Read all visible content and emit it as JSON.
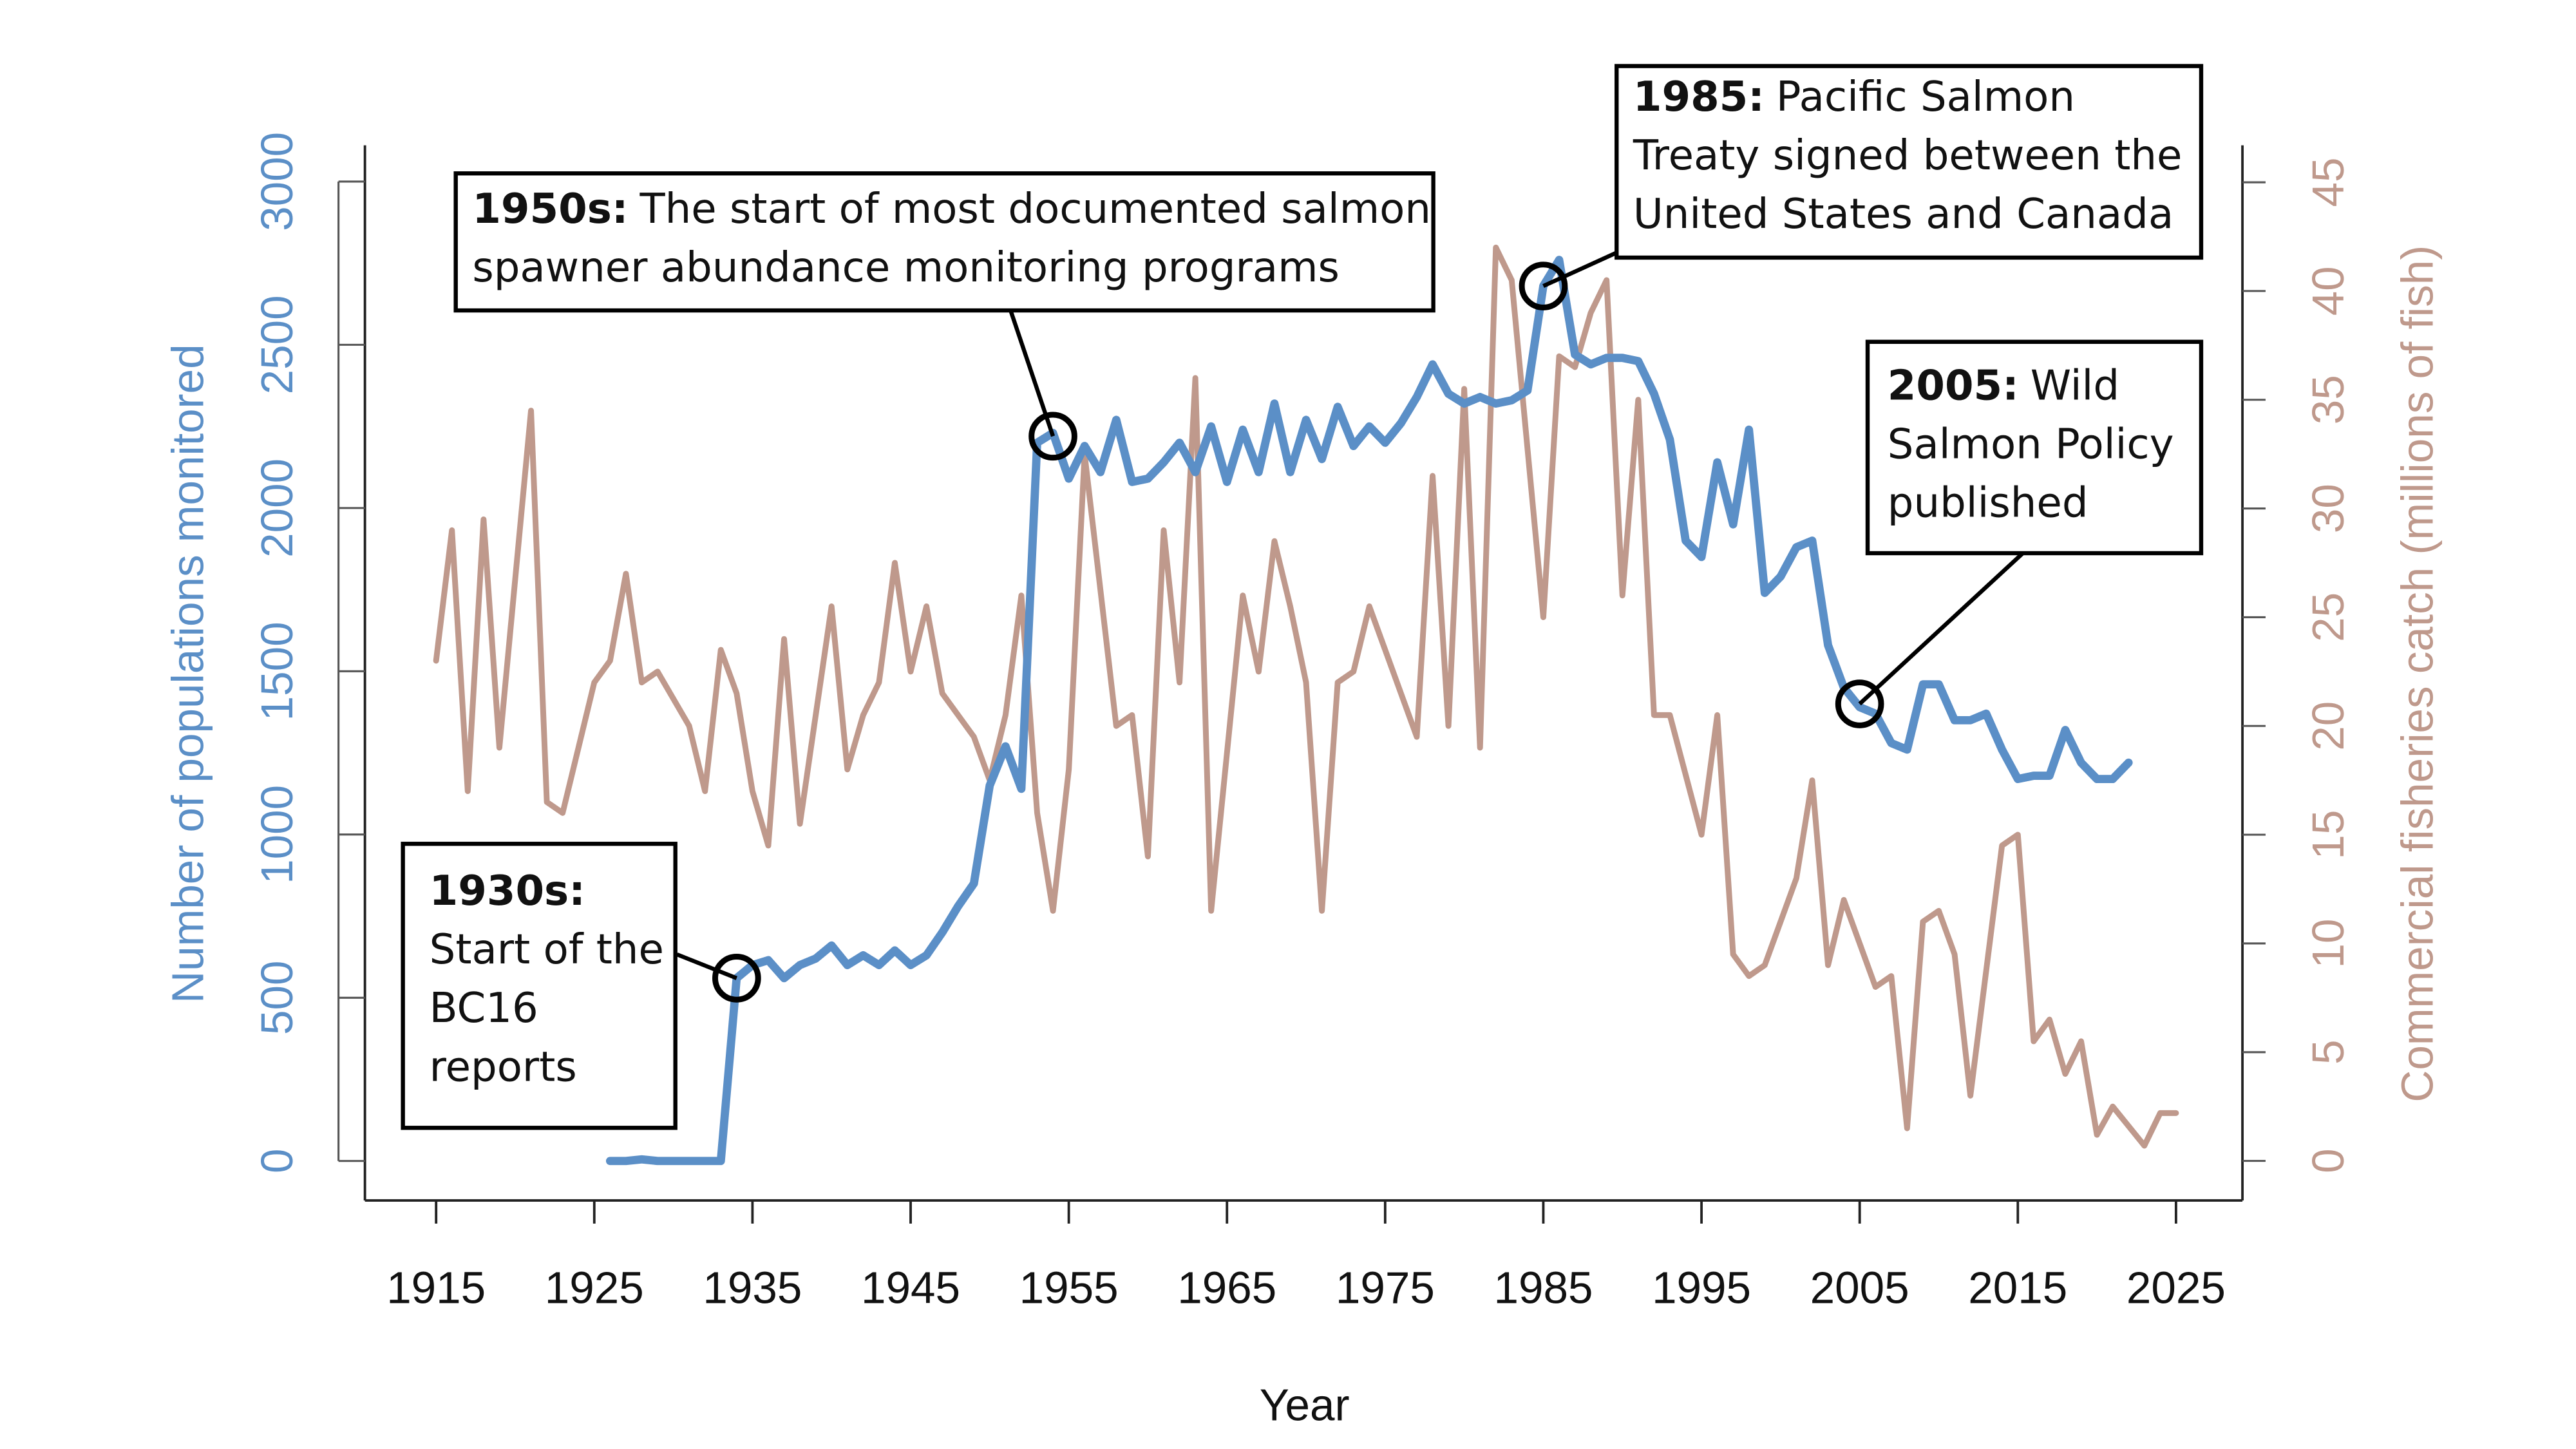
{
  "chart_data": {
    "type": "line",
    "xlabel": "Year",
    "ylabel": "Number of populations monitored",
    "y2label": "Commercial fisheries catch (millions of fish)",
    "xlim": [
      1910.5,
      2029.2
    ],
    "xticks": [
      1915,
      1925,
      1935,
      1945,
      1955,
      1965,
      1975,
      1985,
      1995,
      2005,
      2015,
      2025
    ],
    "ylim": [
      -121,
      3111
    ],
    "yticks": [
      0,
      500,
      1000,
      1500,
      2000,
      2500,
      3000
    ],
    "y2lim": [
      -1.82,
      46.7
    ],
    "y2ticks": [
      0,
      5,
      10,
      15,
      20,
      25,
      30,
      35,
      40,
      45
    ],
    "series": [
      {
        "color": "#5b8fc7",
        "axis": "y",
        "x": [
          1926,
          1927,
          1928,
          1929,
          1930,
          1931,
          1932,
          1933,
          1934,
          1935,
          1936,
          1937,
          1938,
          1939,
          1940,
          1941,
          1942,
          1943,
          1944,
          1945,
          1946,
          1947,
          1948,
          1949,
          1950,
          1951,
          1952,
          1953,
          1954,
          1955,
          1956,
          1957,
          1958,
          1959,
          1960,
          1961,
          1962,
          1963,
          1964,
          1965,
          1966,
          1967,
          1968,
          1969,
          1970,
          1971,
          1972,
          1973,
          1974,
          1975,
          1976,
          1977,
          1978,
          1979,
          1980,
          1981,
          1982,
          1983,
          1984,
          1985,
          1986,
          1987,
          1988,
          1989,
          1990,
          1991,
          1992,
          1993,
          1994,
          1995,
          1996,
          1997,
          1998,
          1999,
          2000,
          2001,
          2002,
          2003,
          2004,
          2005,
          2006,
          2007,
          2008,
          2009,
          2010,
          2011,
          2012,
          2013,
          2014,
          2015,
          2016,
          2017,
          2018,
          2019,
          2020,
          2021,
          2022
        ],
        "values": [
          0,
          0,
          5,
          0,
          0,
          0,
          0,
          0,
          560,
          600,
          615,
          560,
          600,
          620,
          660,
          600,
          630,
          600,
          645,
          600,
          630,
          700,
          780,
          850,
          1150,
          1270,
          1140,
          2200,
          2230,
          2090,
          2190,
          2110,
          2270,
          2080,
          2090,
          2140,
          2200,
          2110,
          2250,
          2080,
          2240,
          2110,
          2320,
          2110,
          2270,
          2150,
          2310,
          2190,
          2250,
          2200,
          2260,
          2340,
          2440,
          2350,
          2320,
          2340,
          2320,
          2330,
          2360,
          2680,
          2760,
          2470,
          2440,
          2460,
          2460,
          2450,
          2350,
          2210,
          1900,
          1850,
          2140,
          1950,
          2240,
          1740,
          1790,
          1880,
          1900,
          1580,
          1450,
          1390,
          1370,
          1280,
          1260,
          1460,
          1460,
          1350,
          1350,
          1370,
          1260,
          1170,
          1180,
          1180,
          1320,
          1220,
          1170,
          1170,
          1220
        ]
      },
      {
        "color": "#bf998c",
        "axis": "y2",
        "x": [
          1915,
          1916,
          1917,
          1918,
          1919,
          1921,
          1922,
          1923,
          1924,
          1925,
          1926,
          1927,
          1928,
          1929,
          1931,
          1932,
          1933,
          1934,
          1935,
          1936,
          1937,
          1938,
          1940,
          1941,
          1942,
          1943,
          1944,
          1945,
          1946,
          1947,
          1949,
          1950,
          1951,
          1952,
          1953,
          1954,
          1955,
          1956,
          1958,
          1959,
          1960,
          1961,
          1962,
          1963,
          1964,
          1966,
          1967,
          1968,
          1969,
          1970,
          1971,
          1972,
          1973,
          1974,
          1975,
          1977,
          1978,
          1979,
          1980,
          1981,
          1982,
          1983,
          1985,
          1986,
          1987,
          1988,
          1989,
          1990,
          1991,
          1992,
          1993,
          1995,
          1996,
          1997,
          1998,
          1999,
          2000,
          2001,
          2002,
          2003,
          2004,
          2006,
          2007,
          2008,
          2009,
          2010,
          2011,
          2012,
          2014,
          2015,
          2016,
          2017,
          2018,
          2019,
          2020,
          2021,
          2023,
          2024,
          2025
        ],
        "values": [
          23,
          29,
          17,
          29.5,
          19,
          34.5,
          16.5,
          16,
          19,
          22,
          23,
          27,
          22,
          22.5,
          20,
          17,
          23.5,
          21.5,
          17,
          14.5,
          24,
          15.5,
          25.5,
          18,
          20.5,
          22,
          27.5,
          22.5,
          25.5,
          21.5,
          19.5,
          17.5,
          20.5,
          26,
          16,
          11.5,
          18,
          32.5,
          20,
          20.5,
          14,
          29,
          22,
          36,
          11.5,
          26,
          22.5,
          28.5,
          25.5,
          22,
          11.5,
          22,
          22.5,
          25.5,
          23.5,
          19.5,
          31.5,
          20,
          35.5,
          19,
          42,
          40.5,
          25,
          37,
          36.5,
          39,
          40.5,
          26,
          35,
          20.5,
          20.5,
          15,
          20.5,
          9.5,
          8.5,
          9,
          11,
          13,
          17.5,
          9,
          12,
          8,
          8.5,
          1.5,
          11,
          11.5,
          9.5,
          3,
          14.5,
          15,
          5.5,
          6.5,
          4,
          5.5,
          1.2,
          2.5,
          0.7,
          2.2,
          2.2
        ]
      }
    ],
    "annotations": [
      {
        "x": 1934,
        "y": 560,
        "heading": "1930s:",
        "lines": [
          "Start of the",
          "BC16",
          "reports"
        ]
      },
      {
        "x": 1954,
        "y": 2220,
        "heading": "1950s:",
        "lines": [
          "The start of most documented salmon",
          "spawner abundance monitoring programs"
        ]
      },
      {
        "x": 1985,
        "y": 2680,
        "heading": "1985:",
        "lines": [
          "Pacific Salmon",
          "Treaty signed between the",
          "United States and Canada"
        ]
      },
      {
        "x": 2005,
        "y": 1400,
        "heading": "2005:",
        "lines": [
          "Wild",
          "Salmon Policy",
          "published"
        ]
      }
    ]
  }
}
